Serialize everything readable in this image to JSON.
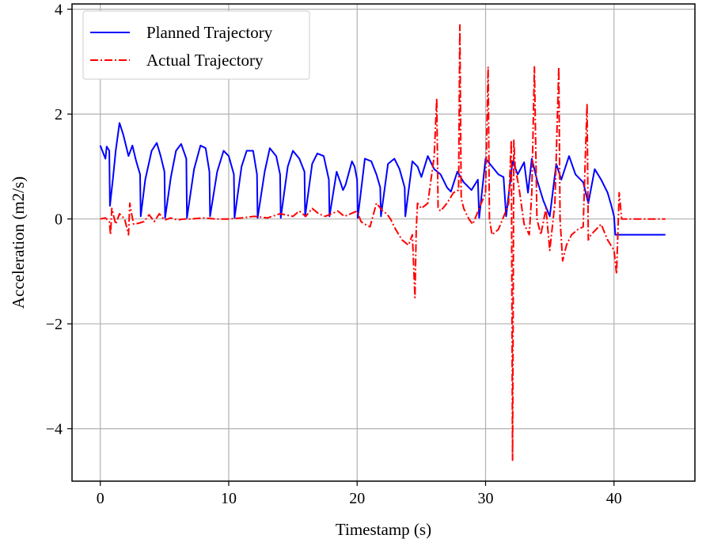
{
  "chart_data": {
    "type": "line",
    "title": "",
    "xlabel": "Timestamp (s)",
    "ylabel": "Acceleration (m2/s)",
    "xlim": [
      -2.2,
      46.3
    ],
    "ylim": [
      -5.0,
      4.1
    ],
    "xticks": [
      0,
      10,
      20,
      30,
      40
    ],
    "xtick_labels": [
      "0",
      "10",
      "20",
      "30",
      "40"
    ],
    "yticks": [
      -4,
      -2,
      0,
      2,
      4
    ],
    "ytick_labels": [
      "−4",
      "−2",
      "0",
      "2",
      "4"
    ],
    "grid": true,
    "legend_position": "top-left",
    "series": [
      {
        "name": "Planned Trajectory",
        "color": "#0000ff",
        "linestyle": "solid",
        "x": [
          0.0,
          0.4,
          0.5,
          0.7,
          0.75,
          1.0,
          1.2,
          1.5,
          1.8,
          2.2,
          2.5,
          2.8,
          3.1,
          3.15,
          3.5,
          4.0,
          4.4,
          4.7,
          5.0,
          5.05,
          5.5,
          5.9,
          6.3,
          6.7,
          6.75,
          7.3,
          7.8,
          8.2,
          8.5,
          8.55,
          9.1,
          9.6,
          10.0,
          10.4,
          10.45,
          11.0,
          11.4,
          11.9,
          12.2,
          12.25,
          12.8,
          13.2,
          13.7,
          14.0,
          14.05,
          14.6,
          15.0,
          15.5,
          15.9,
          15.95,
          16.5,
          16.9,
          17.4,
          17.8,
          17.85,
          18.4,
          18.7,
          18.9,
          19.1,
          19.6,
          19.8,
          20.0,
          20.05,
          20.6,
          21.1,
          21.5,
          21.8,
          21.85,
          22.4,
          22.9,
          23.3,
          23.7,
          23.75,
          24.3,
          24.7,
          25.0,
          25.5,
          26.0,
          26.5,
          27.0,
          27.3,
          27.8,
          28.3,
          28.9,
          29.4,
          29.5,
          30.0,
          30.5,
          31.0,
          31.4,
          31.6,
          32.1,
          32.5,
          33.0,
          33.3,
          33.6,
          34.0,
          34.5,
          35.0,
          35.5,
          35.9,
          36.5,
          37.0,
          37.6,
          38.0,
          38.5,
          39.0,
          39.5,
          39.8,
          40.0,
          40.1,
          40.3,
          44.0
        ],
        "y": [
          1.4,
          1.15,
          1.38,
          1.3,
          0.25,
          0.8,
          1.3,
          1.83,
          1.6,
          1.2,
          1.4,
          1.1,
          0.85,
          0.05,
          0.75,
          1.3,
          1.45,
          1.2,
          0.9,
          0.02,
          0.8,
          1.3,
          1.43,
          1.15,
          0.02,
          0.95,
          1.4,
          1.35,
          0.9,
          0.05,
          0.9,
          1.3,
          1.2,
          0.85,
          0.02,
          1.0,
          1.3,
          1.3,
          0.85,
          0.02,
          0.9,
          1.35,
          1.2,
          0.85,
          0.02,
          1.0,
          1.3,
          1.15,
          0.9,
          0.05,
          1.05,
          1.25,
          1.2,
          0.75,
          0.05,
          0.9,
          0.7,
          0.55,
          0.65,
          1.1,
          1.0,
          0.75,
          0.02,
          1.15,
          1.1,
          0.85,
          0.6,
          0.05,
          1.05,
          1.15,
          0.95,
          0.6,
          0.05,
          1.1,
          1.0,
          0.8,
          1.2,
          0.95,
          0.85,
          0.6,
          0.52,
          0.9,
          0.7,
          0.55,
          0.75,
          0.02,
          1.15,
          1.0,
          0.85,
          0.8,
          0.05,
          1.1,
          0.85,
          1.08,
          0.5,
          1.15,
          0.75,
          0.35,
          0.05,
          1.05,
          0.75,
          1.2,
          0.85,
          0.7,
          0.3,
          0.95,
          0.75,
          0.5,
          0.25,
          0.05,
          -0.3,
          -0.3,
          -0.3
        ]
      },
      {
        "name": "Actual Trajectory",
        "color": "#ff0000",
        "linestyle": "dashdot",
        "x": [
          0.0,
          0.4,
          0.7,
          0.8,
          0.9,
          1.2,
          1.5,
          1.9,
          2.2,
          2.3,
          2.4,
          2.6,
          3.0,
          3.4,
          3.8,
          4.2,
          4.6,
          5.0,
          5.5,
          6.0,
          6.5,
          7.0,
          8.0,
          9.0,
          10.0,
          11.0,
          12.0,
          13.0,
          14.0,
          15.0,
          15.5,
          16.0,
          16.5,
          17.0,
          17.5,
          18.0,
          18.5,
          19.0,
          19.5,
          20.0,
          20.3,
          20.6,
          21.0,
          21.5,
          22.0,
          22.3,
          22.6,
          23.0,
          23.5,
          24.0,
          24.3,
          24.5,
          24.6,
          24.7,
          25.0,
          25.5,
          26.0,
          26.2,
          26.3,
          26.5,
          27.0,
          27.5,
          27.9,
          28.0,
          28.1,
          28.3,
          28.7,
          29.0,
          29.5,
          30.0,
          30.2,
          30.3,
          30.5,
          31.0,
          31.5,
          31.8,
          32.0,
          32.1,
          32.2,
          32.3,
          32.6,
          33.0,
          33.4,
          33.6,
          33.8,
          34.0,
          34.3,
          34.7,
          35.0,
          35.4,
          35.7,
          35.8,
          36.0,
          36.3,
          36.7,
          37.2,
          37.6,
          37.9,
          38.0,
          38.2,
          38.6,
          39.0,
          39.5,
          40.0,
          40.2,
          40.4,
          40.6,
          41.0,
          42.0,
          43.0,
          44.0
        ],
        "y": [
          0.0,
          0.02,
          -0.05,
          -0.3,
          0.2,
          -0.1,
          0.1,
          0.0,
          -0.3,
          0.3,
          0.15,
          -0.1,
          -0.08,
          -0.05,
          0.08,
          -0.05,
          0.1,
          -0.02,
          0.02,
          -0.02,
          0.0,
          0.0,
          0.02,
          0.0,
          0.0,
          0.02,
          0.05,
          0.02,
          0.1,
          0.05,
          0.15,
          0.05,
          0.2,
          0.1,
          0.05,
          0.1,
          0.15,
          0.05,
          0.1,
          0.15,
          -0.05,
          -0.1,
          -0.15,
          0.3,
          0.15,
          0.1,
          0.0,
          -0.2,
          -0.4,
          -0.5,
          -0.3,
          -1.5,
          -0.2,
          0.3,
          0.2,
          0.3,
          1.2,
          2.3,
          0.2,
          0.15,
          0.3,
          0.5,
          0.55,
          3.7,
          0.4,
          0.2,
          0.0,
          -0.1,
          0.2,
          0.5,
          2.9,
          0.0,
          -0.3,
          -0.2,
          0.1,
          0.3,
          1.5,
          -4.6,
          1.5,
          1.0,
          0.6,
          -0.1,
          -0.3,
          0.5,
          2.9,
          0.0,
          -0.3,
          0.2,
          -0.6,
          0.3,
          2.9,
          0.0,
          -0.8,
          -0.5,
          -0.3,
          -0.2,
          -0.15,
          2.2,
          -0.4,
          -0.3,
          -0.2,
          -0.1,
          -0.4,
          -0.6,
          -1.05,
          0.5,
          0.0,
          0.0,
          0.0,
          0.0,
          0.0
        ]
      }
    ]
  }
}
